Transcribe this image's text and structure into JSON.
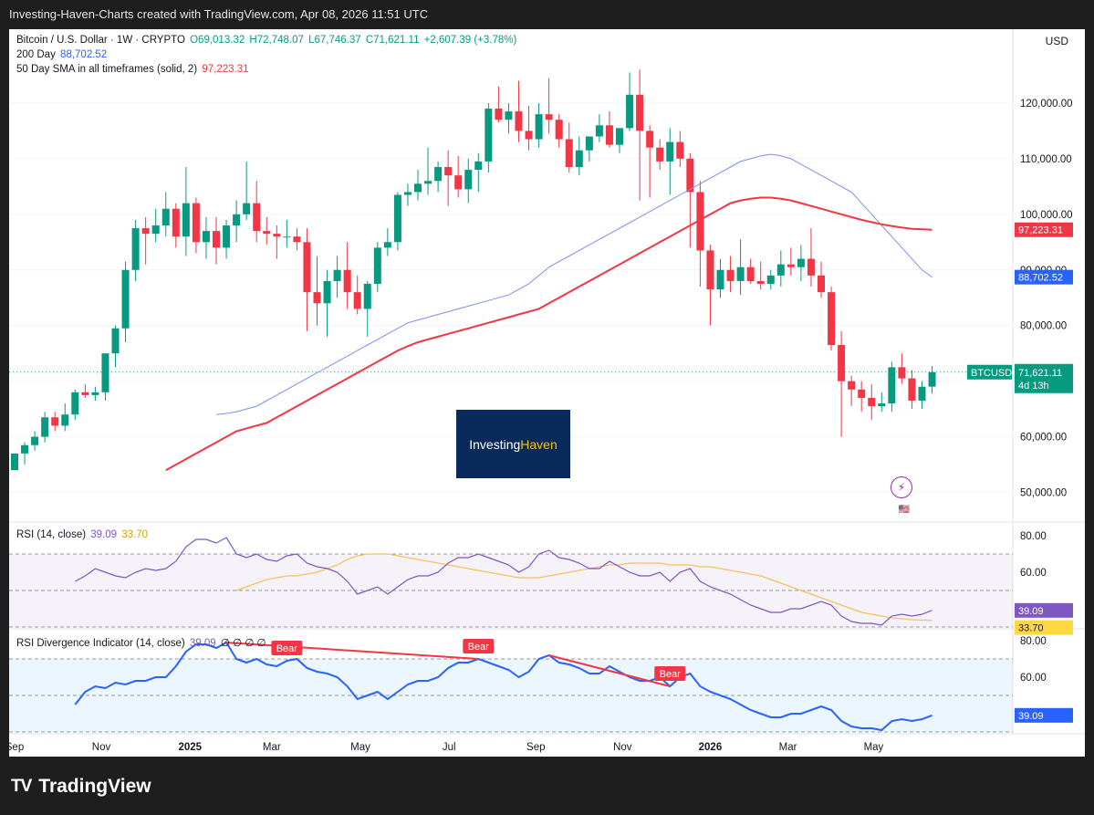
{
  "header": {
    "title": "Investing-Haven-Charts created with TradingView.com, Apr 08, 2026 11:51 UTC"
  },
  "legend": {
    "symbol": "Bitcoin / U.S. Dollar · 1W · CRYPTO",
    "open": "O69,013.32",
    "high": "H72,748.07",
    "low": "L67,746.37",
    "close": "C71,621.11",
    "change": "+2,607.39 (+3.78%)",
    "sma200_label": "200 Day",
    "sma200_value": "88,702.52",
    "sma50_label": "50 Day SMA in all timeframes (solid, 2)",
    "sma50_value": "97,223.31",
    "rsi_label": "RSI (14, close)",
    "rsi_value": "39.09",
    "rsi_ma_value": "33.70",
    "div_label": "RSI Divergence Indicator (14, close)",
    "div_value": "39.09",
    "div_zeros": "∅ ∅ ∅ ∅"
  },
  "currency": "USD",
  "logo": {
    "part1": "Investing",
    "part2": "Haven"
  },
  "footer": {
    "brand": "TradingView",
    "mark": "TV"
  },
  "tags": {
    "ticker": "BTCUSD",
    "price": "71,621.11",
    "countdown": "4d 13h",
    "sma50": "97,223.31",
    "sma200": "88,702.52",
    "rsi": "39.09",
    "rsi_ma": "33.70",
    "div": "39.09"
  },
  "colors": {
    "up": "#089981",
    "down": "#f23645",
    "sma50": "#f23645",
    "sma200": "#7b8ff0",
    "rsi": "#7e57c2",
    "rsi_ma": "#f5c15a",
    "div_line": "#2962ff"
  },
  "chart_data": [
    {
      "type": "candlestick",
      "title": "Bitcoin / U.S. Dollar · 1W · CRYPTO",
      "ylabel": "USD",
      "ylim": [
        45000,
        130000
      ],
      "yticks": [
        "50,000.00",
        "60,000.00",
        "70,000.00",
        "80,000.00",
        "90,000.00",
        "100,000.00",
        "110,000.00",
        "120,000.00"
      ],
      "ytick_values": [
        50000,
        60000,
        70000,
        80000,
        90000,
        100000,
        110000,
        120000
      ],
      "xticks": [
        "Sep",
        "Nov",
        "2025",
        "Mar",
        "May",
        "Jul",
        "Sep",
        "Nov",
        "2026",
        "Mar",
        "May"
      ],
      "xtick_index": [
        0,
        8.6,
        17.4,
        25.5,
        34.3,
        43.1,
        51.7,
        60.3,
        69,
        76.7,
        85.2
      ],
      "ohlc": [
        [
          54000,
          57000,
          54000,
          57000
        ],
        [
          57000,
          59000,
          55000,
          58500
        ],
        [
          58500,
          61000,
          57500,
          60000
        ],
        [
          60000,
          64500,
          59000,
          63500
        ],
        [
          63500,
          64500,
          61000,
          62000
        ],
        [
          62000,
          66000,
          61000,
          64000
        ],
        [
          64000,
          68500,
          63000,
          68000
        ],
        [
          68000,
          69500,
          67000,
          67500
        ],
        [
          67500,
          69000,
          66500,
          68000
        ],
        [
          68000,
          75000,
          66500,
          75000
        ],
        [
          75000,
          80000,
          72500,
          79500
        ],
        [
          79500,
          91500,
          77000,
          90000
        ],
        [
          90000,
          99000,
          88000,
          97500
        ],
        [
          97500,
          99500,
          91000,
          96500
        ],
        [
          96500,
          101000,
          95000,
          98000
        ],
        [
          98000,
          104000,
          96000,
          101000
        ],
        [
          101000,
          102000,
          94000,
          96000
        ],
        [
          96000,
          108500,
          92500,
          102000
        ],
        [
          102000,
          103000,
          93000,
          95000
        ],
        [
          95000,
          99500,
          92000,
          97000
        ],
        [
          97000,
          99500,
          91000,
          94000
        ],
        [
          94000,
          99000,
          92000,
          98000
        ],
        [
          98000,
          102500,
          95000,
          100000
        ],
        [
          100000,
          109500,
          99000,
          102000
        ],
        [
          102000,
          106000,
          95000,
          97000
        ],
        [
          97000,
          99500,
          94500,
          96500
        ],
        [
          96500,
          98000,
          92000,
          96000
        ],
        [
          96000,
          99000,
          94000,
          96000
        ],
        [
          96000,
          97500,
          93500,
          95000
        ],
        [
          95000,
          97500,
          79000,
          86000
        ],
        [
          86000,
          92500,
          80000,
          84000
        ],
        [
          84000,
          90000,
          78000,
          88000
        ],
        [
          88000,
          92500,
          85000,
          90000
        ],
        [
          90000,
          95000,
          83000,
          86000
        ],
        [
          86000,
          89000,
          82000,
          83000
        ],
        [
          83000,
          88000,
          78000,
          87500
        ],
        [
          87500,
          95000,
          86000,
          94000
        ],
        [
          94000,
          97500,
          92500,
          95000
        ],
        [
          95000,
          104000,
          93500,
          103500
        ],
        [
          103500,
          105500,
          101500,
          104000
        ],
        [
          104000,
          108000,
          102500,
          105500
        ],
        [
          105500,
          112000,
          103500,
          106000
        ],
        [
          106000,
          109500,
          104000,
          108500
        ],
        [
          108500,
          111500,
          101500,
          107000
        ],
        [
          107000,
          110500,
          103000,
          104500
        ],
        [
          104500,
          110000,
          102000,
          108000
        ],
        [
          108000,
          111000,
          104000,
          109500
        ],
        [
          109500,
          120000,
          107500,
          119000
        ],
        [
          119000,
          123000,
          116500,
          117000
        ],
        [
          117000,
          120000,
          114500,
          118500
        ],
        [
          118500,
          124000,
          113000,
          115000
        ],
        [
          115000,
          119500,
          111500,
          113500
        ],
        [
          113500,
          120000,
          112000,
          118000
        ],
        [
          118000,
          124500,
          114500,
          117000
        ],
        [
          117000,
          118000,
          112000,
          113500
        ],
        [
          113500,
          116500,
          107500,
          108500
        ],
        [
          108500,
          114000,
          107000,
          111500
        ],
        [
          111500,
          114000,
          109500,
          114000
        ],
        [
          114000,
          118000,
          113000,
          116000
        ],
        [
          116000,
          118500,
          112000,
          112500
        ],
        [
          112500,
          115000,
          111000,
          115500
        ],
        [
          115500,
          125500,
          115000,
          121500
        ],
        [
          121500,
          126000,
          102500,
          115000
        ],
        [
          115000,
          116000,
          103000,
          112000
        ],
        [
          112000,
          113500,
          108000,
          109500
        ],
        [
          109500,
          115500,
          103500,
          113000
        ],
        [
          113000,
          115000,
          108500,
          110000
        ],
        [
          110000,
          111000,
          94000,
          104000
        ],
        [
          104000,
          106000,
          87000,
          93500
        ],
        [
          93500,
          94500,
          80000,
          86500
        ],
        [
          86500,
          92000,
          85000,
          90000
        ],
        [
          90000,
          92500,
          86000,
          88000
        ],
        [
          88000,
          95500,
          85500,
          90500
        ],
        [
          90500,
          92000,
          87500,
          88000
        ],
        [
          88000,
          91500,
          86500,
          87500
        ],
        [
          87500,
          90000,
          86500,
          89000
        ],
        [
          89000,
          93500,
          87000,
          91000
        ],
        [
          91000,
          94000,
          89000,
          90500
        ],
        [
          90500,
          94500,
          88000,
          92000
        ],
        [
          92000,
          97500,
          87000,
          89000
        ],
        [
          89000,
          91500,
          85000,
          86000
        ],
        [
          86000,
          87000,
          75500,
          76500
        ],
        [
          76500,
          79000,
          60000,
          70000
        ],
        [
          70000,
          71000,
          65500,
          68500
        ],
        [
          68500,
          70000,
          64500,
          67000
        ],
        [
          67000,
          69500,
          63000,
          65500
        ],
        [
          65500,
          68000,
          64500,
          66000
        ],
        [
          66000,
          73500,
          64500,
          72500
        ],
        [
          72500,
          75000,
          69500,
          70500
        ],
        [
          70500,
          72000,
          65000,
          66500
        ],
        [
          66500,
          70000,
          65000,
          69000
        ],
        [
          69013.32,
          72748.07,
          67746.37,
          71621.11
        ]
      ],
      "sma50": [
        54000,
        55000,
        56000,
        57000,
        58000,
        59000,
        60000,
        61000,
        61500,
        62000,
        62500,
        63500,
        64500,
        65500,
        66500,
        67500,
        68500,
        69500,
        70500,
        71500,
        72500,
        73500,
        74500,
        75500,
        76300,
        77000,
        77500,
        78000,
        78500,
        79000,
        79500,
        80000,
        80500,
        81000,
        81500,
        82000,
        82500,
        83000,
        84000,
        85000,
        86000,
        87000,
        88000,
        89000,
        90000,
        91000,
        92000,
        93000,
        94000,
        95000,
        96000,
        97000,
        98000,
        99000,
        100000,
        101000,
        102000,
        102500,
        102800,
        103000,
        103000,
        102800,
        102500,
        102000,
        101500,
        101000,
        100500,
        100000,
        99500,
        99000,
        98600,
        98200,
        97900,
        97600,
        97400,
        97300,
        97223.31
      ],
      "sma200": [
        64000,
        64200,
        64500,
        65000,
        65500,
        66500,
        67500,
        68500,
        69500,
        70500,
        71500,
        72500,
        73500,
        74500,
        75500,
        76500,
        77500,
        78500,
        79500,
        80500,
        81000,
        81500,
        82000,
        82500,
        83000,
        83500,
        84000,
        84500,
        85000,
        85500,
        86500,
        87500,
        89000,
        90500,
        91500,
        92500,
        93500,
        94500,
        95500,
        96500,
        97500,
        98500,
        99500,
        100500,
        101500,
        102500,
        103500,
        104500,
        105500,
        106500,
        107500,
        108500,
        109500,
        110000,
        110500,
        110800,
        110500,
        110000,
        109000,
        108000,
        107000,
        106000,
        105000,
        104000,
        102000,
        100000,
        98000,
        96000,
        94000,
        92000,
        90000,
        88702.52
      ]
    },
    {
      "type": "line",
      "title": "RSI (14, close)",
      "ylim": [
        30,
        85
      ],
      "yticks": [
        "80.00",
        "60.00"
      ],
      "ytick_values": [
        80,
        60
      ],
      "bands": [
        70,
        50,
        30
      ],
      "series": [
        {
          "name": "RSI",
          "values": [
            55,
            58,
            62,
            60,
            58,
            57,
            60,
            62,
            61,
            62,
            66,
            74,
            78,
            78,
            76,
            79,
            70,
            68,
            70,
            67,
            66,
            69,
            70,
            65,
            63,
            62,
            60,
            55,
            48,
            50,
            52,
            48,
            52,
            56,
            58,
            58,
            60,
            65,
            68,
            68,
            70,
            68,
            66,
            64,
            60,
            63,
            70,
            72,
            68,
            67,
            65,
            62,
            62,
            66,
            63,
            60,
            58,
            58,
            60,
            55,
            60,
            62,
            55,
            52,
            50,
            48,
            45,
            42,
            40,
            38,
            38,
            40,
            40,
            42,
            44,
            42,
            36,
            33,
            32,
            32,
            31,
            36,
            37,
            36,
            37,
            39.09
          ]
        },
        {
          "name": "RSI MA",
          "values": [
            50,
            52,
            54,
            56,
            57,
            58,
            58,
            59,
            60,
            62,
            64,
            67,
            69,
            70,
            70,
            70,
            69,
            68,
            67,
            66,
            65,
            64,
            63,
            62,
            61,
            60,
            59,
            58,
            57,
            57,
            57,
            58,
            59,
            60,
            61,
            62,
            63,
            64,
            64,
            65,
            65,
            65,
            65,
            64,
            64,
            64,
            63,
            63,
            62,
            61,
            60,
            59,
            58,
            56,
            54,
            52,
            50,
            48,
            46,
            44,
            42,
            40,
            38,
            37,
            36,
            35,
            34.5,
            34,
            33.8,
            33.7
          ]
        }
      ]
    },
    {
      "type": "line",
      "title": "RSI Divergence Indicator (14, close)",
      "ylim": [
        30,
        85
      ],
      "yticks": [
        "80.00",
        "60.00"
      ],
      "ytick_values": [
        80,
        60
      ],
      "bands": [
        70,
        50,
        30
      ],
      "series": [
        {
          "name": "RSI",
          "values": [
            45,
            52,
            55,
            54,
            57,
            56,
            58,
            58,
            60,
            60,
            66,
            74,
            78,
            78,
            76,
            79,
            70,
            68,
            70,
            67,
            66,
            69,
            70,
            65,
            63,
            62,
            60,
            55,
            48,
            50,
            52,
            48,
            52,
            56,
            58,
            58,
            60,
            65,
            68,
            68,
            70,
            68,
            66,
            64,
            60,
            63,
            70,
            72,
            68,
            67,
            65,
            62,
            62,
            66,
            63,
            60,
            58,
            58,
            60,
            55,
            60,
            62,
            55,
            52,
            50,
            48,
            45,
            42,
            40,
            38,
            38,
            40,
            40,
            42,
            44,
            42,
            36,
            33,
            32,
            32,
            31,
            36,
            37,
            36,
            37,
            39.09
          ]
        }
      ],
      "annotations": [
        "Bear",
        "Bear",
        "Bear"
      ]
    }
  ]
}
